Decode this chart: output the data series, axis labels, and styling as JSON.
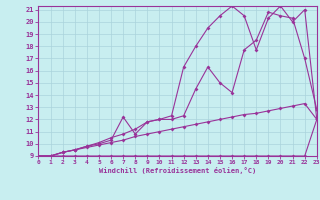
{
  "xlabel": "Windchill (Refroidissement éolien,°C)",
  "background_color": "#c8eef0",
  "grid_color": "#aad4dc",
  "line_color": "#993399",
  "xmin": 0,
  "xmax": 23,
  "ymin": 9,
  "ymax": 21,
  "line1_x": [
    0,
    1,
    2,
    3,
    4,
    5,
    6,
    7,
    8,
    9,
    10,
    11,
    12,
    13,
    14,
    15,
    16,
    17,
    18,
    19,
    20,
    21,
    22,
    23
  ],
  "line1_y": [
    9,
    9,
    9,
    9,
    9,
    9,
    9,
    9,
    9,
    9,
    9,
    9,
    9,
    9,
    9,
    9,
    9,
    9,
    9,
    9,
    9,
    9,
    9,
    12
  ],
  "line2_x": [
    0,
    1,
    2,
    3,
    4,
    5,
    6,
    7,
    8,
    9,
    10,
    11,
    12,
    13,
    14,
    15,
    16,
    17,
    18,
    19,
    20,
    21,
    22,
    23
  ],
  "line2_y": [
    9,
    9,
    9.3,
    9.5,
    9.7,
    9.9,
    10.1,
    10.3,
    10.6,
    10.8,
    11.0,
    11.2,
    11.4,
    11.6,
    11.8,
    12.0,
    12.2,
    12.4,
    12.5,
    12.7,
    12.9,
    13.1,
    13.3,
    12
  ],
  "line3_x": [
    0,
    1,
    2,
    3,
    4,
    5,
    6,
    7,
    8,
    9,
    10,
    11,
    12,
    13,
    14,
    15,
    16,
    17,
    18,
    19,
    20,
    21,
    22,
    23
  ],
  "line3_y": [
    9,
    9,
    9.3,
    9.5,
    9.8,
    10.0,
    10.3,
    12.2,
    10.8,
    11.8,
    12.0,
    12.0,
    12.3,
    14.5,
    16.3,
    15.0,
    14.2,
    17.7,
    18.5,
    20.8,
    20.5,
    20.3,
    17.0,
    12.8
  ],
  "line4_x": [
    0,
    1,
    2,
    3,
    4,
    5,
    6,
    7,
    8,
    9,
    10,
    11,
    12,
    13,
    14,
    15,
    16,
    17,
    18,
    19,
    20,
    21,
    22,
    23
  ],
  "line4_y": [
    9,
    9,
    9.3,
    9.5,
    9.8,
    10.1,
    10.5,
    10.8,
    11.2,
    11.8,
    12.0,
    12.3,
    16.3,
    18.0,
    19.5,
    20.5,
    21.3,
    20.5,
    17.7,
    20.3,
    21.3,
    20.0,
    21.0,
    12.0
  ]
}
